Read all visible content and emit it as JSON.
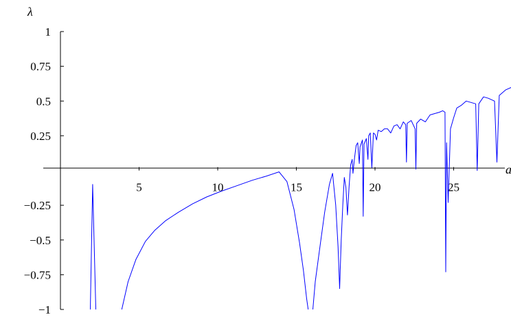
{
  "chart_data": {
    "type": "line",
    "title": "",
    "xlabel": "a",
    "ylabel": "λ",
    "xlim": [
      0,
      29.2
    ],
    "ylim": [
      -1,
      1
    ],
    "grid": false,
    "series_color": "#0000ff",
    "x_ticks": [
      {
        "value": 5,
        "label": "5"
      },
      {
        "value": 10,
        "label": "10"
      },
      {
        "value": 15,
        "label": "15"
      },
      {
        "value": 20,
        "label": "20"
      },
      {
        "value": 25,
        "label": "25"
      }
    ],
    "y_ticks": [
      {
        "value": 1,
        "label": "1"
      },
      {
        "value": 0.75,
        "label": "0.75"
      },
      {
        "value": 0.5,
        "label": "0.5"
      },
      {
        "value": 0.25,
        "label": "0.25"
      },
      {
        "value": -0.25,
        "label": "−0.25"
      },
      {
        "value": -0.5,
        "label": "−0.5"
      },
      {
        "value": -0.75,
        "label": "−0.75"
      },
      {
        "value": -1,
        "label": "−1"
      }
    ],
    "series": [
      {
        "segments": [
          [
            [
              1.9,
              -1.0
            ],
            [
              2.05,
              -0.1
            ],
            [
              2.25,
              -1.0
            ]
          ],
          [
            [
              3.9,
              -1.0
            ],
            [
              4.3,
              -0.8
            ],
            [
              4.8,
              -0.64
            ],
            [
              5.4,
              -0.51
            ],
            [
              6.0,
              -0.43
            ],
            [
              6.7,
              -0.36
            ],
            [
              7.5,
              -0.3
            ],
            [
              8.4,
              -0.24
            ],
            [
              9.3,
              -0.19
            ],
            [
              10.2,
              -0.15
            ],
            [
              11.2,
              -0.11
            ],
            [
              12.2,
              -0.07
            ],
            [
              13.1,
              -0.04
            ],
            [
              13.9,
              -0.01
            ],
            [
              14.4,
              -0.08
            ],
            [
              14.85,
              -0.28
            ],
            [
              15.2,
              -0.52
            ],
            [
              15.45,
              -0.72
            ],
            [
              15.65,
              -0.92
            ],
            [
              15.75,
              -1.0
            ]
          ],
          [
            [
              16.05,
              -1.0
            ],
            [
              16.2,
              -0.8
            ],
            [
              16.5,
              -0.55
            ],
            [
              16.8,
              -0.3
            ],
            [
              17.1,
              -0.1
            ],
            [
              17.3,
              -0.02
            ],
            [
              17.5,
              -0.25
            ],
            [
              17.65,
              -0.55
            ],
            [
              17.75,
              -0.85
            ],
            [
              17.85,
              -0.5
            ],
            [
              17.95,
              -0.25
            ],
            [
              18.05,
              -0.05
            ],
            [
              18.15,
              -0.12
            ],
            [
              18.25,
              -0.32
            ],
            [
              18.35,
              -0.12
            ],
            [
              18.45,
              0.04
            ],
            [
              18.55,
              0.08
            ],
            [
              18.6,
              -0.02
            ],
            [
              18.7,
              0.09
            ],
            [
              18.8,
              0.18
            ],
            [
              18.9,
              0.2
            ],
            [
              19.0,
              0.05
            ],
            [
              19.05,
              0.17
            ],
            [
              19.2,
              0.22
            ],
            [
              19.25,
              -0.33
            ],
            [
              19.3,
              0.19
            ],
            [
              19.45,
              0.23
            ],
            [
              19.55,
              0.08
            ],
            [
              19.6,
              0.25
            ],
            [
              19.7,
              0.27
            ],
            [
              19.8,
              0.02
            ],
            [
              19.9,
              0.27
            ],
            [
              20.0,
              0.26
            ],
            [
              20.1,
              0.22
            ],
            [
              20.2,
              0.29
            ],
            [
              20.4,
              0.28
            ],
            [
              20.6,
              0.3
            ],
            [
              20.8,
              0.3
            ],
            [
              21.0,
              0.27
            ],
            [
              21.2,
              0.32
            ],
            [
              21.4,
              0.33
            ],
            [
              21.6,
              0.3
            ],
            [
              21.8,
              0.35
            ],
            [
              21.95,
              0.33
            ],
            [
              22.0,
              0.06
            ],
            [
              22.05,
              0.34
            ],
            [
              22.3,
              0.36
            ],
            [
              22.55,
              0.3
            ],
            [
              22.6,
              0.01
            ],
            [
              22.65,
              0.34
            ],
            [
              22.9,
              0.37
            ],
            [
              23.2,
              0.35
            ],
            [
              23.5,
              0.4
            ],
            [
              23.8,
              0.41
            ],
            [
              24.1,
              0.42
            ],
            [
              24.3,
              0.43
            ],
            [
              24.45,
              0.42
            ],
            [
              24.5,
              -0.73
            ],
            [
              24.55,
              0.2
            ],
            [
              24.65,
              -0.23
            ],
            [
              24.8,
              0.3
            ],
            [
              25.0,
              0.38
            ],
            [
              25.2,
              0.45
            ],
            [
              25.5,
              0.47
            ],
            [
              25.8,
              0.5
            ],
            [
              26.1,
              0.49
            ],
            [
              26.4,
              0.48
            ],
            [
              26.5,
              0.0
            ],
            [
              26.6,
              0.48
            ],
            [
              26.9,
              0.53
            ],
            [
              27.2,
              0.52
            ],
            [
              27.6,
              0.5
            ],
            [
              27.75,
              0.06
            ],
            [
              27.9,
              0.54
            ],
            [
              28.3,
              0.58
            ],
            [
              28.7,
              0.6
            ],
            [
              28.95,
              0.61
            ]
          ]
        ]
      }
    ]
  }
}
